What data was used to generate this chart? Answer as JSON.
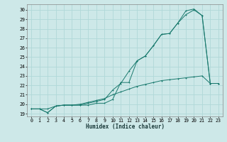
{
  "xlabel": "Humidex (Indice chaleur)",
  "background_color": "#cde8e8",
  "grid_color": "#b0d8d8",
  "line_color": "#1a7a6e",
  "xlim": [
    -0.5,
    23.5
  ],
  "ylim": [
    18.7,
    30.6
  ],
  "xticks": [
    0,
    1,
    2,
    3,
    4,
    5,
    6,
    7,
    8,
    9,
    10,
    11,
    12,
    13,
    14,
    15,
    16,
    17,
    18,
    19,
    20,
    21,
    22,
    23
  ],
  "yticks": [
    19,
    20,
    21,
    22,
    23,
    24,
    25,
    26,
    27,
    28,
    29,
    30
  ],
  "line1_x": [
    0,
    1,
    2,
    3,
    4,
    5,
    6,
    7,
    8,
    9,
    10,
    11,
    12,
    13,
    14,
    15,
    16,
    17,
    18,
    19,
    20,
    21,
    22,
    23
  ],
  "line1_y": [
    19.5,
    19.5,
    19.1,
    19.8,
    19.9,
    19.9,
    19.9,
    19.9,
    20.1,
    20.1,
    20.5,
    22.3,
    22.3,
    24.6,
    25.1,
    26.2,
    27.4,
    27.5,
    28.6,
    29.9,
    30.1,
    29.4,
    22.2,
    22.2
  ],
  "line2_x": [
    0,
    1,
    2,
    3,
    4,
    5,
    6,
    7,
    8,
    9,
    10,
    11,
    12,
    13,
    14,
    15,
    16,
    17,
    18,
    19,
    20,
    21,
    22,
    23
  ],
  "line2_y": [
    19.5,
    19.5,
    19.1,
    19.8,
    19.9,
    19.9,
    19.9,
    20.1,
    20.3,
    20.5,
    21.5,
    22.2,
    23.5,
    24.6,
    25.1,
    26.2,
    27.4,
    27.5,
    28.6,
    29.5,
    30.0,
    29.4,
    22.2,
    22.2
  ],
  "line3_x": [
    0,
    1,
    2,
    3,
    4,
    5,
    6,
    7,
    8,
    9,
    10,
    11,
    12,
    13,
    14,
    15,
    16,
    17,
    18,
    19,
    20,
    21,
    22,
    23
  ],
  "line3_y": [
    19.5,
    19.5,
    19.5,
    19.8,
    19.9,
    19.9,
    20.0,
    20.2,
    20.4,
    20.6,
    21.0,
    21.3,
    21.6,
    21.9,
    22.1,
    22.3,
    22.5,
    22.6,
    22.7,
    22.8,
    22.9,
    23.0,
    22.2,
    22.2
  ],
  "xlabel_fontsize": 5.5,
  "tick_fontsize": 4.8,
  "linewidth": 0.7,
  "markersize": 2.0
}
